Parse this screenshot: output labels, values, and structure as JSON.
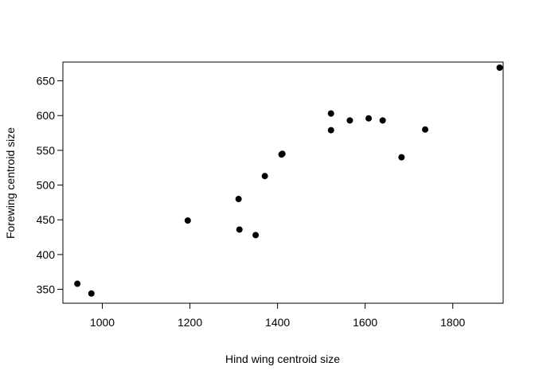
{
  "chart_data": {
    "type": "scatter",
    "xlabel": "Hind wing centroid size",
    "ylabel": "Forewing centroid size",
    "xlim": [
      910,
      1915
    ],
    "ylim": [
      330,
      677
    ],
    "xticks": [
      1000,
      1200,
      1400,
      1600,
      1800
    ],
    "yticks": [
      350,
      400,
      450,
      500,
      550,
      600,
      650
    ],
    "grid": false,
    "marker_color": "#000000",
    "points": [
      {
        "x": 943,
        "y": 358
      },
      {
        "x": 975,
        "y": 344
      },
      {
        "x": 1195,
        "y": 449
      },
      {
        "x": 1311,
        "y": 480
      },
      {
        "x": 1313,
        "y": 436
      },
      {
        "x": 1350,
        "y": 428
      },
      {
        "x": 1371,
        "y": 513
      },
      {
        "x": 1409,
        "y": 544
      },
      {
        "x": 1411,
        "y": 545
      },
      {
        "x": 1522,
        "y": 603
      },
      {
        "x": 1522,
        "y": 579
      },
      {
        "x": 1565,
        "y": 593
      },
      {
        "x": 1608,
        "y": 596
      },
      {
        "x": 1640,
        "y": 593
      },
      {
        "x": 1683,
        "y": 540
      },
      {
        "x": 1737,
        "y": 580
      },
      {
        "x": 1907,
        "y": 669
      }
    ]
  }
}
